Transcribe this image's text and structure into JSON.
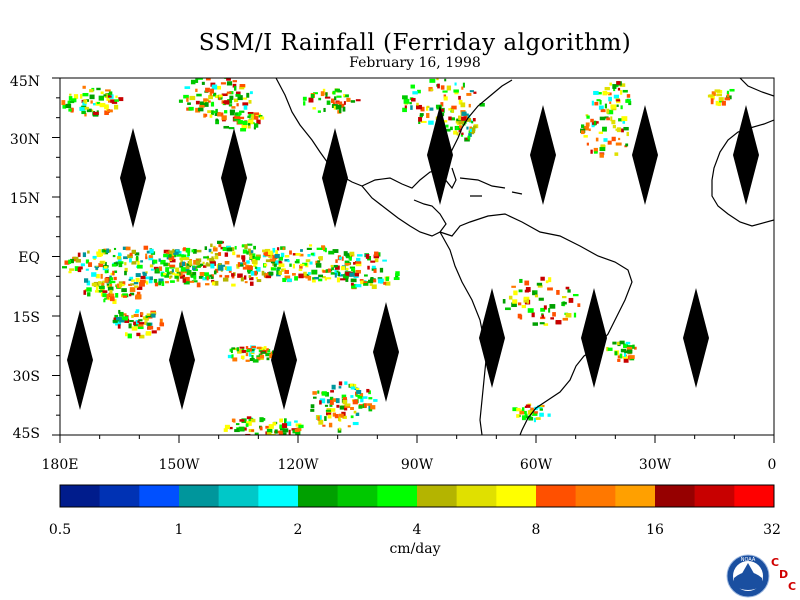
{
  "title": "SSM/I Rainfall (Ferriday algorithm)",
  "subtitle": "February 16, 1998",
  "lat_labels": [
    "45N",
    "30N",
    "15N",
    "EQ",
    "15S",
    "30S",
    "45S"
  ],
  "lon_labels": [
    "180E",
    "150W",
    "120W",
    "90W",
    "60W",
    "30W",
    "0"
  ],
  "colorbar": {
    "colors": [
      "#001c8c",
      "#0032b4",
      "#0050ff",
      "#00969c",
      "#00c8c8",
      "#00ffff",
      "#00a000",
      "#00c800",
      "#00ff00",
      "#b4b400",
      "#e0e000",
      "#ffff00",
      "#ff5000",
      "#ff7800",
      "#ffa000",
      "#960000",
      "#c80000",
      "#ff0000"
    ],
    "labels": [
      "0.5",
      "1",
      "2",
      "4",
      "8",
      "16",
      "32"
    ],
    "units": "cm/day"
  },
  "logo": {
    "noaa_text": "NOAA",
    "cdc_letters": [
      "C",
      "D",
      "C"
    ]
  },
  "map_colors": {
    "coast": "#000000",
    "marker": "#000000"
  }
}
